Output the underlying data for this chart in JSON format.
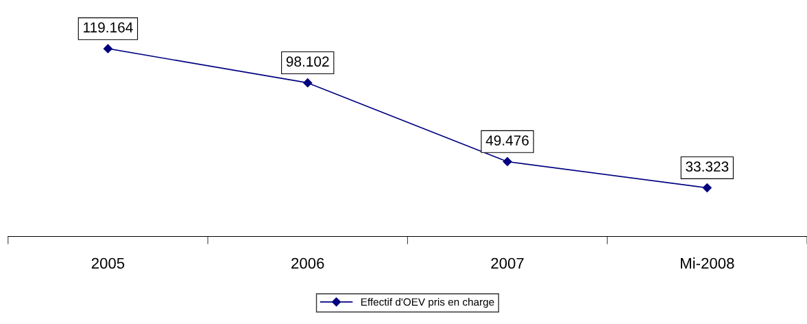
{
  "chart_data": {
    "type": "line",
    "categories": [
      "2005",
      "2006",
      "2007",
      "Mi-2008"
    ],
    "series": [
      {
        "name": "Effectif d'OEV pris en charge",
        "color": "#000080",
        "values": [
          119.164,
          98.102,
          49.476,
          33.323
        ]
      }
    ],
    "tick_labels": "x",
    "data_labels": true,
    "marker": "diamond",
    "line_style": "solid",
    "legend": "bottom",
    "grid": false
  }
}
